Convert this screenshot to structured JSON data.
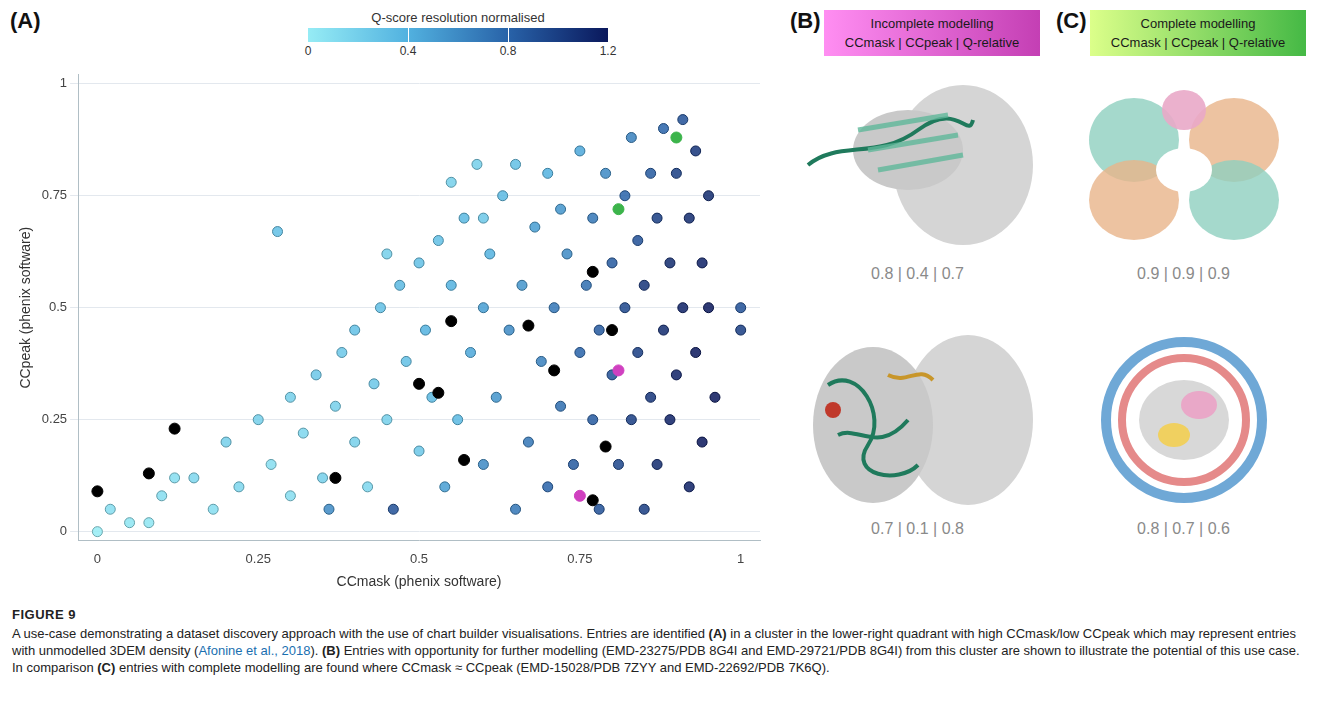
{
  "chart_data": {
    "type": "scatter",
    "x_label": "CCmask (phenix software)",
    "y_label": "CCpeak (phenix software)",
    "xlim": [
      -0.03,
      1.03
    ],
    "xticks": [
      0,
      0.25,
      0.5,
      0.75,
      1
    ],
    "ylim": [
      -0.02,
      1.02
    ],
    "yticks": [
      0,
      0.25,
      0.5,
      0.75,
      1
    ],
    "grid": true,
    "colorbar": {
      "title": "Q-score resolution normalised",
      "range": [
        0,
        1.2
      ],
      "ticks": [
        0,
        0.4,
        0.8,
        1.2
      ]
    },
    "series": [
      {
        "marker": "circle",
        "x": [
          0.0,
          0.02,
          0.05,
          0.08,
          0.1,
          0.12,
          0.15,
          0.18,
          0.2,
          0.22,
          0.25,
          0.27,
          0.28,
          0.3,
          0.3,
          0.32,
          0.34,
          0.35,
          0.36,
          0.37,
          0.38,
          0.4,
          0.4,
          0.42,
          0.43,
          0.44,
          0.45,
          0.45,
          0.46,
          0.47,
          0.48,
          0.5,
          0.5,
          0.51,
          0.52,
          0.53,
          0.54,
          0.55,
          0.55,
          0.56,
          0.57,
          0.58,
          0.59,
          0.6,
          0.6,
          0.6,
          0.61,
          0.62,
          0.63,
          0.64,
          0.65,
          0.65,
          0.66,
          0.67,
          0.68,
          0.69,
          0.7,
          0.7,
          0.71,
          0.72,
          0.72,
          0.73,
          0.74,
          0.75,
          0.75,
          0.76,
          0.77,
          0.77,
          0.78,
          0.78,
          0.79,
          0.8,
          0.8,
          0.81,
          0.82,
          0.82,
          0.83,
          0.83,
          0.84,
          0.84,
          0.85,
          0.85,
          0.86,
          0.86,
          0.87,
          0.87,
          0.88,
          0.88,
          0.89,
          0.89,
          0.9,
          0.9,
          0.91,
          0.91,
          0.92,
          0.92,
          0.93,
          0.93,
          0.94,
          0.94,
          0.95,
          0.95,
          0.96,
          1.0,
          1.0
        ],
        "values": [
          0.0,
          0.05,
          0.02,
          0.02,
          0.08,
          0.12,
          0.12,
          0.05,
          0.2,
          0.1,
          0.25,
          0.15,
          0.67,
          0.3,
          0.08,
          0.22,
          0.35,
          0.12,
          0.05,
          0.28,
          0.4,
          0.2,
          0.45,
          0.1,
          0.33,
          0.5,
          0.25,
          0.62,
          0.05,
          0.55,
          0.38,
          0.6,
          0.18,
          0.45,
          0.3,
          0.65,
          0.1,
          0.55,
          0.78,
          0.25,
          0.7,
          0.4,
          0.82,
          0.5,
          0.15,
          0.7,
          0.62,
          0.3,
          0.75,
          0.45,
          0.05,
          0.82,
          0.55,
          0.2,
          0.68,
          0.38,
          0.8,
          0.1,
          0.5,
          0.28,
          0.72,
          0.62,
          0.15,
          0.4,
          0.85,
          0.55,
          0.25,
          0.7,
          0.05,
          0.45,
          0.8,
          0.35,
          0.6,
          0.15,
          0.5,
          0.75,
          0.25,
          0.88,
          0.4,
          0.65,
          0.05,
          0.55,
          0.8,
          0.3,
          0.7,
          0.15,
          0.45,
          0.9,
          0.6,
          0.25,
          0.8,
          0.35,
          0.5,
          0.92,
          0.7,
          0.1,
          0.85,
          0.4,
          0.6,
          0.2,
          0.75,
          0.5,
          0.3,
          0.45,
          0.5
        ],
        "q_score": [
          0.0,
          0.1,
          0.05,
          0.05,
          0.1,
          0.1,
          0.15,
          0.1,
          0.2,
          0.15,
          0.2,
          0.1,
          0.3,
          0.2,
          0.1,
          0.15,
          0.25,
          0.2,
          0.6,
          0.2,
          0.25,
          0.2,
          0.3,
          0.15,
          0.25,
          0.3,
          0.2,
          0.2,
          0.9,
          0.35,
          0.3,
          0.3,
          0.25,
          0.4,
          0.35,
          0.3,
          0.5,
          0.4,
          0.2,
          0.35,
          0.35,
          0.45,
          0.2,
          0.5,
          0.6,
          0.25,
          0.4,
          0.55,
          0.35,
          0.6,
          0.7,
          0.3,
          0.55,
          0.7,
          0.5,
          0.65,
          0.4,
          0.8,
          0.7,
          0.75,
          0.55,
          0.6,
          0.85,
          0.8,
          0.45,
          0.75,
          0.85,
          0.7,
          0.9,
          0.85,
          0.6,
          0.9,
          0.85,
          0.95,
          0.95,
          0.8,
          1.0,
          0.65,
          1.0,
          0.9,
          1.0,
          1.05,
          0.85,
          1.05,
          1.0,
          1.1,
          1.1,
          0.8,
          1.1,
          1.15,
          1.0,
          1.15,
          1.15,
          0.9,
          1.1,
          1.15,
          1.05,
          1.2,
          1.15,
          1.2,
          1.1,
          1.2,
          1.2,
          1.0,
          0.9
        ]
      },
      {
        "color": "#000000",
        "marker": "circle",
        "x": [
          0.0,
          0.08,
          0.12,
          0.37,
          0.5,
          0.53,
          0.55,
          0.57,
          0.67,
          0.71,
          0.77,
          0.77,
          0.79,
          0.8
        ],
        "values": [
          0.09,
          0.13,
          0.23,
          0.12,
          0.33,
          0.31,
          0.47,
          0.16,
          0.46,
          0.36,
          0.58,
          0.07,
          0.19,
          0.45
        ]
      },
      {
        "color": "#3cb44b",
        "marker": "circle",
        "x": [
          0.81,
          0.9
        ],
        "values": [
          0.72,
          0.88
        ]
      },
      {
        "color": "#d040c0",
        "marker": "circle",
        "x": [
          0.75,
          0.81
        ],
        "values": [
          0.08,
          0.36
        ]
      }
    ]
  },
  "figure": {
    "panels": [
      {
        "label": "(A)"
      },
      {
        "label": "(B)",
        "header": [
          "Incomplete modelling",
          "CCmask | CCpeak | Q-relative"
        ],
        "colors": [
          "#ff8ef2",
          "#c43fb4"
        ],
        "entries": [
          "0.8 | 0.4 | 0.7",
          "0.7 | 0.1 | 0.8"
        ]
      },
      {
        "label": "(C)",
        "header": [
          "Complete modelling",
          "CCmask | CCpeak | Q-relative"
        ],
        "colors": [
          "#dcff8a",
          "#45b945"
        ],
        "entries": [
          "0.9 | 0.9 | 0.9",
          "0.8 | 0.7 | 0.6"
        ]
      }
    ],
    "caption": {
      "label": "FIGURE 9",
      "segments": [
        {
          "text": "A use-case demonstrating a dataset discovery approach with the use of chart builder visualisations. Entries are identified "
        },
        {
          "text": "(A)",
          "style": "bold"
        },
        {
          "text": " in a cluster in the lower-right quadrant with high CCmask/low CCpeak which may represent entries with unmodelled 3DEM density ("
        },
        {
          "text": "Afonine et al., 2018",
          "style": "link"
        },
        {
          "text": "). "
        },
        {
          "text": "(B)",
          "style": "bold"
        },
        {
          "text": " Entries with opportunity for further modelling (EMD-23275/PDB 8G4I and EMD-29721/PDB 8G4I) from this cluster are shown to illustrate the potential of this use case. In comparison "
        },
        {
          "text": "(C)",
          "style": "bold"
        },
        {
          "text": " entries with complete modelling are found where CCmask ≈ CCpeak (EMD-15028/PDB 7ZYY and EMD-22692/PDB 7K6Q)."
        }
      ]
    }
  }
}
